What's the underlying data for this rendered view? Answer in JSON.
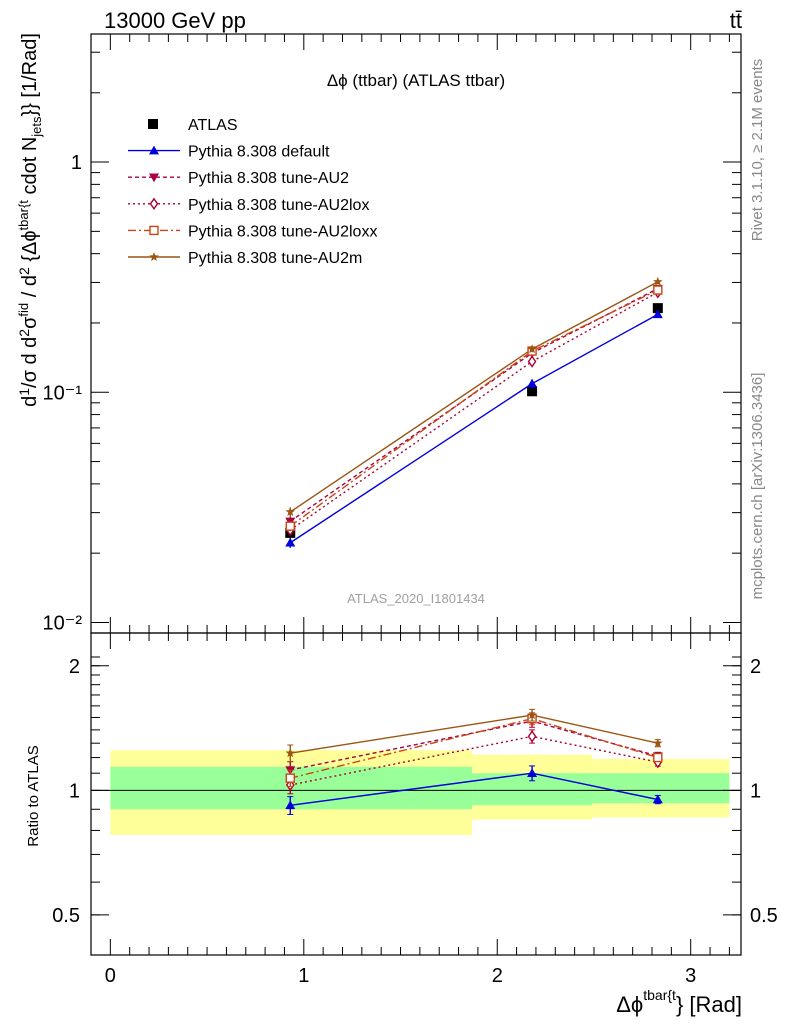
{
  "header": {
    "left": "13000 GeV pp",
    "right": "tt̄"
  },
  "side_labels": {
    "rivet": "Rivet 3.1.10, ≥ 2.1M events",
    "mcplots": "mcplots.cern.ch [arXiv:1306.3436]"
  },
  "chart_data": {
    "type": "line",
    "title": "Δϕ (ttbar) (ATLAS ttbar)",
    "watermark": "ATLAS_2020_I1801434",
    "xlabel": "Δϕ^{tbar{t}} [Rad]",
    "ylabel": "d¹/σ d d²σ^fid / d²{Δϕ^tbar{t}} cdot N_jets}} [1/Rad]",
    "ratio_ylabel": "Ratio to ATLAS",
    "xlim": [
      -0.1,
      3.26
    ],
    "ylim": [
      0.009,
      3.6
    ],
    "yscale": "log",
    "ratio_ylim": [
      0.4,
      2.4
    ],
    "x_ticks": [
      "0",
      "1",
      "2",
      "3"
    ],
    "y_ticks": [
      "10⁻²",
      "10⁻¹",
      "1"
    ],
    "ratio_ticks": [
      "0.5",
      "1",
      "2"
    ],
    "legend_position": "top-left",
    "bins": [
      [
        0,
        1.87
      ],
      [
        1.87,
        2.49
      ],
      [
        2.49,
        3.2
      ]
    ],
    "data": {
      "name": "ATLAS",
      "x": [
        0.93,
        2.18,
        2.83
      ],
      "y": [
        0.0245,
        0.101,
        0.232
      ],
      "ratio_band_green": [
        [
          0.9,
          1.14
        ],
        [
          0.92,
          1.1
        ],
        [
          0.93,
          1.1
        ]
      ],
      "ratio_band_yellow": [
        [
          0.78,
          1.25
        ],
        [
          0.85,
          1.22
        ],
        [
          0.86,
          1.19
        ]
      ]
    },
    "series": [
      {
        "name": "Pythia 8.308 default",
        "color": "#0000dd",
        "marker": "triangle-up",
        "dash": "",
        "x": [
          0.93,
          2.18,
          2.83
        ],
        "y": [
          0.0222,
          0.109,
          0.218
        ],
        "yerr": [
          0.0011,
          0.0045,
          0.005
        ],
        "ratio": [
          0.92,
          1.1,
          0.95
        ]
      },
      {
        "name": "Pythia 8.308 tune-AU2",
        "color": "#aa0044",
        "marker": "triangle-down",
        "dash": "4,3",
        "x": [
          0.93,
          2.18,
          2.83
        ],
        "y": [
          0.0275,
          0.148,
          0.282
        ],
        "yerr": [
          0.0013,
          0.005,
          0.006
        ],
        "ratio": [
          1.12,
          1.47,
          1.21
        ]
      },
      {
        "name": "Pythia 8.308 tune-AU2lox",
        "color": "#aa0033",
        "marker": "diamond-open",
        "dash": "2,3",
        "x": [
          0.93,
          2.18,
          2.83
        ],
        "y": [
          0.0252,
          0.136,
          0.272
        ],
        "yerr": [
          0.0012,
          0.005,
          0.006
        ],
        "ratio": [
          1.03,
          1.35,
          1.17
        ]
      },
      {
        "name": "Pythia 8.308 tune-AU2loxx",
        "color": "#cc4411",
        "marker": "square-open",
        "dash": "8,3,2,3",
        "x": [
          0.93,
          2.18,
          2.83
        ],
        "y": [
          0.0262,
          0.151,
          0.278
        ],
        "yerr": [
          0.0012,
          0.005,
          0.006
        ],
        "ratio": [
          1.07,
          1.49,
          1.2
        ]
      },
      {
        "name": "Pythia 8.308 tune-AU2m",
        "color": "#995511",
        "marker": "star",
        "dash": "",
        "x": [
          0.93,
          2.18,
          2.83
        ],
        "y": [
          0.0302,
          0.154,
          0.302
        ],
        "yerr": [
          0.0014,
          0.005,
          0.006
        ],
        "ratio": [
          1.23,
          1.52,
          1.3
        ]
      }
    ]
  }
}
